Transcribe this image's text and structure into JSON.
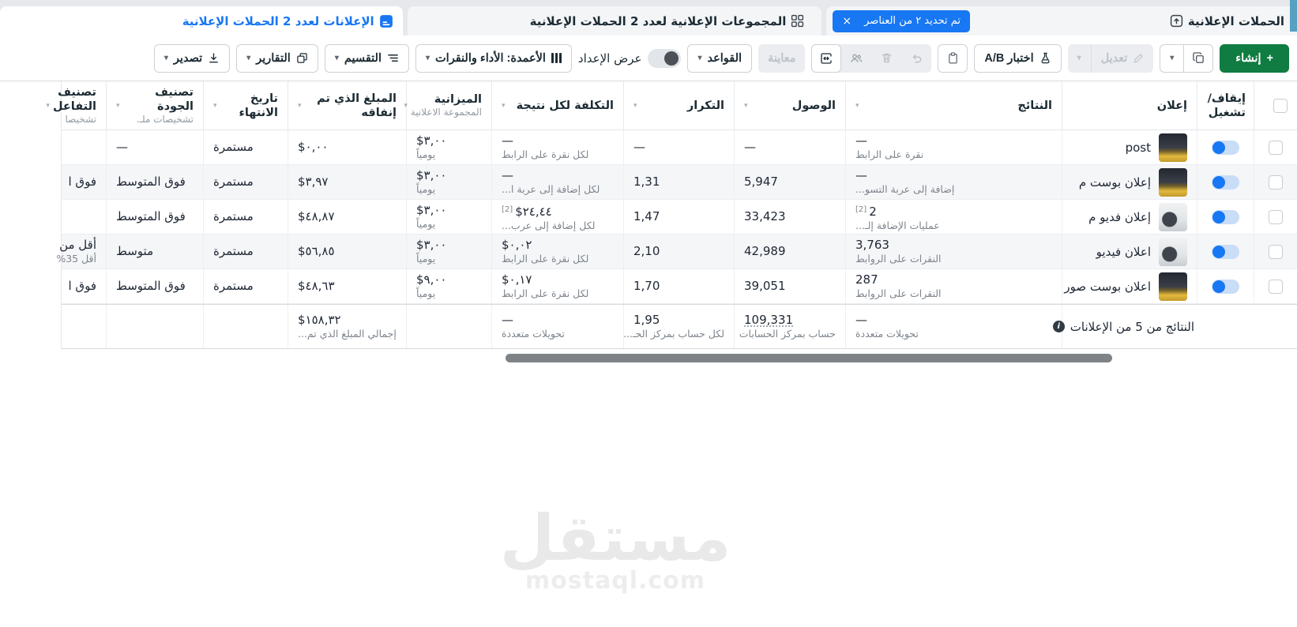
{
  "tabs": {
    "campaigns": {
      "label": "الحملات الإعلانية",
      "badge_text": "تم تحديد ٢ من العناصر"
    },
    "adsets": {
      "label": "المجموعات الإعلانية لعدد 2 الحملات الإعلانية"
    },
    "ads": {
      "label": "الإعلانات لعدد 2 الحملات الإعلانية"
    }
  },
  "toolbar": {
    "create": "إنشاء",
    "edit": "تعديل",
    "ab_test": "اختبار A/B",
    "preview": "معاينة",
    "rules": "القواعد",
    "setup_toggle": "عرض الإعداد",
    "columns": "الأعمدة: الأداء والنقرات",
    "breakdown": "التقسيم",
    "reports": "التقارير",
    "export": "تصدير"
  },
  "table": {
    "toggle_header": "إيقاف/ تشغيل",
    "columns": [
      {
        "label": "إعلان",
        "sub": "",
        "sort": false
      },
      {
        "label": "النتائج",
        "sub": "",
        "sort": true
      },
      {
        "label": "الوصول",
        "sub": "",
        "sort": true
      },
      {
        "label": "التكرار",
        "sub": "",
        "sort": true
      },
      {
        "label": "التكلفة لكل نتيجة",
        "sub": "",
        "sort": true
      },
      {
        "label": "الميزانية",
        "sub": "المجموعة الاعلانية",
        "sort": true
      },
      {
        "label": "المبلغ الذي تم إنفاقه",
        "sub": "",
        "sort": true
      },
      {
        "label": "تاريخ الانتهاء",
        "sub": "",
        "sort": true
      },
      {
        "label": "تصنيف الجودة",
        "sub": "تشخيصات ملـ.",
        "sort": true
      },
      {
        "label": "تصنيف التفاعل",
        "sub": "تشخيصا",
        "sort": true
      }
    ],
    "rows": [
      {
        "name": "post",
        "thumb": "art",
        "results": "—",
        "results_sup": "",
        "results_sub": "نقرة على الرابط",
        "reach": "—",
        "freq": "—",
        "cost": "—",
        "cost_sup": "",
        "cost_sub": "لكل نقرة على الرابط",
        "budget": "٣,٠٠$",
        "budget_sub": "يومياً",
        "spent": "٠,٠٠$",
        "end": "مستمرة",
        "quality": "—",
        "engagement": "",
        "engagement_sub": ""
      },
      {
        "name": "إعلان بوست م",
        "thumb": "art",
        "results": "—",
        "results_sup": "",
        "results_sub": "إضافة إلى عربة التسو...",
        "reach": "5,947",
        "freq": "1,31",
        "cost": "—",
        "cost_sup": "",
        "cost_sub": "لكل إضافة إلى عربة ا...",
        "budget": "٣,٠٠$",
        "budget_sub": "يومياً",
        "spent": "٣,٩٧$",
        "end": "مستمرة",
        "quality": "فوق المتوسط",
        "engagement": "فوق ا",
        "engagement_sub": ""
      },
      {
        "name": "إعلان فديو م",
        "thumb": "video",
        "results": "2",
        "results_sup": "[2]",
        "results_sub": "عمليات الإضافة إلـ...",
        "reach": "33,423",
        "freq": "1,47",
        "cost": "٢٤,٤٤$",
        "cost_sup": "[2]",
        "cost_sub": "لكل إضافة إلى عرب...",
        "budget": "٣,٠٠$",
        "budget_sub": "يومياً",
        "spent": "٤٨,٨٧$",
        "end": "مستمرة",
        "quality": "فوق المتوسط",
        "engagement": "",
        "engagement_sub": ""
      },
      {
        "name": "اعلان فيديو",
        "thumb": "video",
        "results": "3,763",
        "results_sup": "",
        "results_sub": "النقرات على الروابط",
        "reach": "42,989",
        "freq": "2,10",
        "cost": "٠,٠٢$",
        "cost_sup": "",
        "cost_sub": "لكل نقرة على الرابط",
        "budget": "٣,٠٠$",
        "budget_sub": "يومياً",
        "spent": "٥٦,٨٥$",
        "end": "مستمرة",
        "quality": "متوسط",
        "engagement": "أقل من",
        "engagement_sub": "أقل 35%"
      },
      {
        "name": "اعلان بوست صور",
        "thumb": "art",
        "results": "287",
        "results_sup": "",
        "results_sub": "النقرات على الروابط",
        "reach": "39,051",
        "freq": "1,70",
        "cost": "٠,١٧$",
        "cost_sup": "",
        "cost_sub": "لكل نقرة على الرابط",
        "budget": "٩,٠٠$",
        "budget_sub": "يومياً",
        "spent": "٤٨,٦٣$",
        "end": "مستمرة",
        "quality": "فوق المتوسط",
        "engagement": "فوق ا",
        "engagement_sub": ""
      }
    ],
    "summary": {
      "label": "النتائج من 5 من الإعلانات",
      "results": "—",
      "results_sub": "تحويلات متعددة",
      "reach": "109,331",
      "reach_sub": "حساب بمركز الحسابات",
      "freq": "1,95",
      "freq_sub": "لكل حساب بمركز الحـ...",
      "cost": "—",
      "cost_sub": "تحويلات متعددة",
      "spent": "١٥٨,٣٢$",
      "spent_sub": "إجمالي المبلغ الذي تم..."
    }
  },
  "watermark": {
    "title": "مستقل",
    "domain": "mostaql.com"
  },
  "colors": {
    "accent_blue": "#1877f2",
    "create_green": "#107c41",
    "zebra": "#f5f6f8"
  }
}
